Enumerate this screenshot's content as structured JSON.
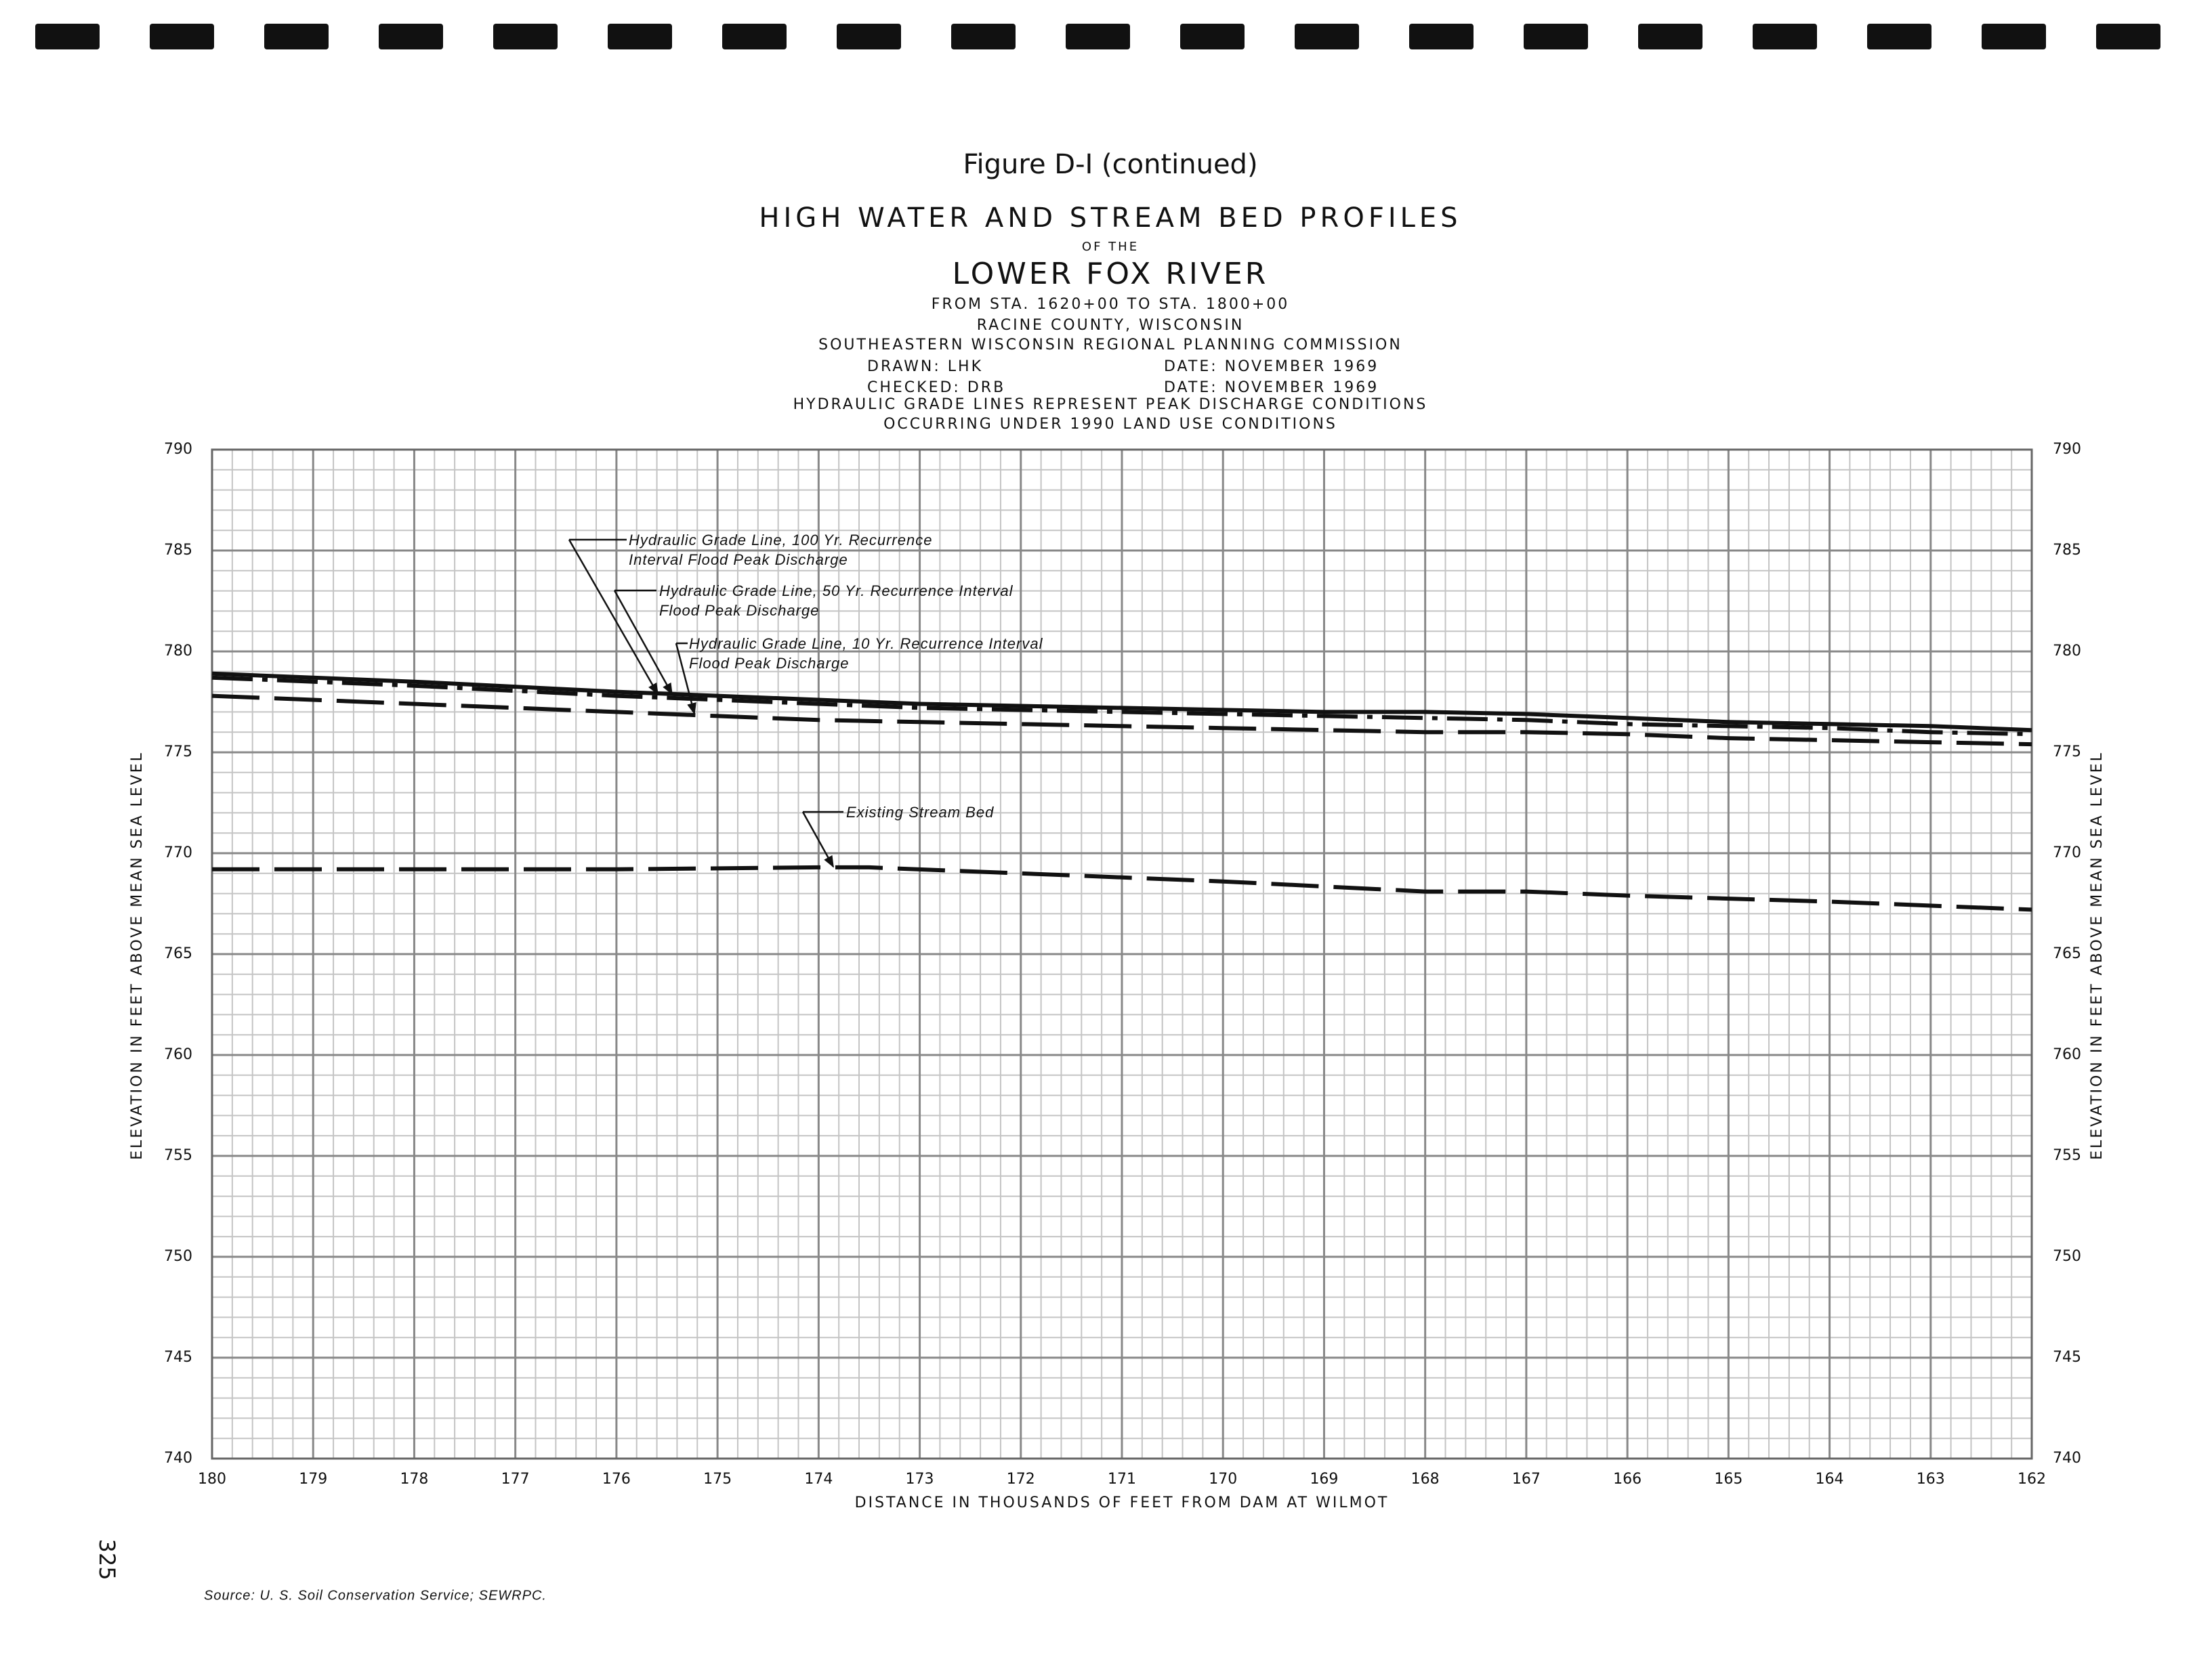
{
  "chart_data": {
    "type": "line",
    "figure_label": "Figure D-I (continued)",
    "title": "HIGH WATER AND STREAM BED PROFILES",
    "title_connector": "OF THE",
    "subtitle": "LOWER FOX RIVER",
    "reach": "FROM STA. 1620+00 TO STA. 1800+00",
    "location": "RACINE COUNTY, WISCONSIN",
    "agency": "SOUTHEASTERN WISCONSIN REGIONAL PLANNING COMMISSION",
    "drawn": "DRAWN: LHK",
    "drawn_date": "DATE: NOVEMBER 1969",
    "checked": "CHECKED: DRB",
    "checked_date": "DATE: NOVEMBER 1969",
    "note_lines": [
      "HYDRAULIC GRADE LINES REPRESENT PEAK DISCHARGE CONDITIONS",
      "OCCURRING UNDER 1990 LAND USE CONDITIONS"
    ],
    "xlabel": "DISTANCE IN THOUSANDS OF FEET FROM DAM AT WILMOT",
    "ylabel": "ELEVATION IN FEET ABOVE MEAN SEA LEVEL",
    "page_number": "325",
    "source": "Source: U. S. Soil Conservation Service; SEWRPC.",
    "xlim": [
      180,
      162
    ],
    "xticks": [
      180,
      179,
      178,
      177,
      176,
      175,
      174,
      173,
      172,
      171,
      170,
      169,
      168,
      167,
      166,
      165,
      164,
      163,
      162
    ],
    "ylim": [
      740,
      790
    ],
    "yticks": [
      740,
      745,
      750,
      755,
      760,
      765,
      770,
      775,
      780,
      785,
      790
    ],
    "grid": true,
    "minor_grid": {
      "x": 0.2,
      "y": 1
    },
    "series": [
      {
        "name": "Hydraulic Grade Line, 100 Yr. Recurrence Interval Flood Peak Discharge",
        "color": "#111111",
        "line_style": "solid",
        "x": [
          180,
          178,
          176,
          175,
          174,
          173,
          172,
          171,
          170,
          169,
          168,
          167,
          166,
          165,
          164,
          163,
          162
        ],
        "values": [
          778.9,
          778.5,
          778.0,
          777.8,
          777.6,
          777.4,
          777.3,
          777.2,
          777.1,
          777.0,
          777.0,
          776.9,
          776.7,
          776.5,
          776.4,
          776.3,
          776.1
        ]
      },
      {
        "name": "Hydraulic Grade Line, 50 Yr. Recurrence Interval Flood Peak Discharge",
        "color": "#111111",
        "line_style": "dash-dot",
        "x": [
          180,
          178,
          176,
          175,
          174,
          173,
          172,
          171,
          170,
          169,
          168,
          167,
          166,
          165,
          164,
          163,
          162
        ],
        "values": [
          778.7,
          778.3,
          777.8,
          777.6,
          777.4,
          777.2,
          777.1,
          777.0,
          776.9,
          776.8,
          776.7,
          776.6,
          776.4,
          776.3,
          776.2,
          776.0,
          775.9
        ]
      },
      {
        "name": "Hydraulic Grade Line, 10 Yr. Recurrence Interval Flood Peak Discharge",
        "color": "#111111",
        "line_style": "long-dash",
        "x": [
          180,
          178,
          176,
          175,
          174,
          173,
          172,
          171,
          170,
          169,
          168,
          167,
          166,
          165,
          164,
          163,
          162
        ],
        "values": [
          777.8,
          777.4,
          777.0,
          776.8,
          776.6,
          776.5,
          776.4,
          776.3,
          776.2,
          776.1,
          776.0,
          776.0,
          775.9,
          775.7,
          775.6,
          775.5,
          775.4
        ]
      },
      {
        "name": "Existing Stream Bed",
        "color": "#111111",
        "line_style": "long-dash",
        "x": [
          180,
          178,
          176,
          174,
          173.5,
          172,
          170,
          168,
          167,
          166,
          164,
          162
        ],
        "values": [
          769.2,
          769.2,
          769.2,
          769.3,
          769.3,
          769.0,
          768.6,
          768.1,
          768.1,
          767.9,
          767.6,
          767.2
        ]
      }
    ]
  }
}
